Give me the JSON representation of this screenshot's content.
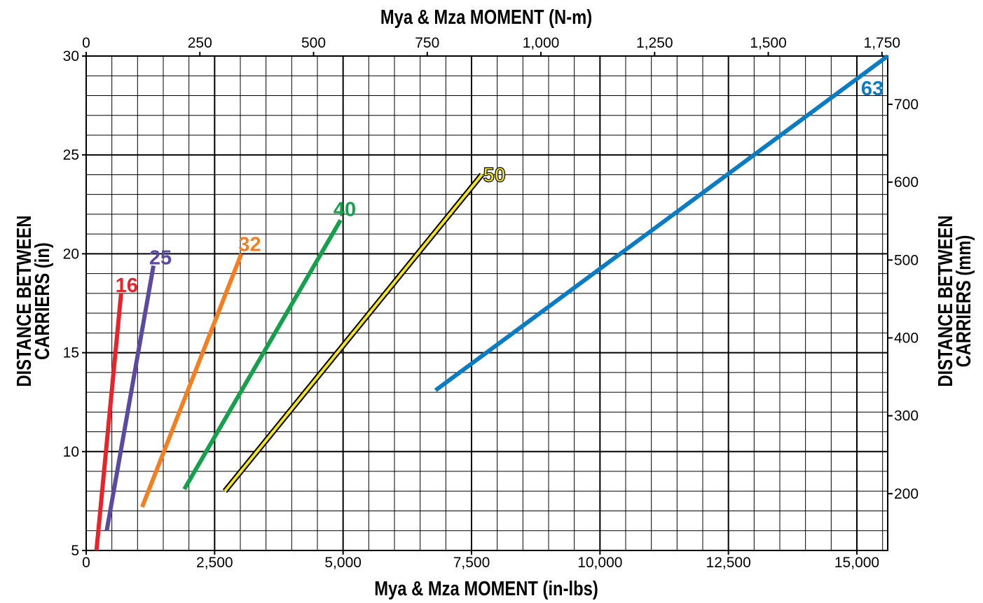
{
  "chart_data": {
    "type": "line",
    "title": "Mya & Mza MOMENT (N-m)",
    "xlabel": "Mya & Mza MOMENT (in-lbs)",
    "ylabel": "DISTANCE BETWEEN CARRIERS (in)",
    "x2label": "Mya & Mza MOMENT (N-m)",
    "y2label": "DISTANCE BETWEEN CARRIERS (mm)",
    "xlim": [
      0,
      15600
    ],
    "ylim": [
      5,
      30
    ],
    "x2lim": [
      0,
      1762.6
    ],
    "y2lim": [
      127,
      762
    ],
    "grid": true,
    "x_ticks": [
      0,
      2500,
      5000,
      7500,
      10000,
      12500,
      15000
    ],
    "x_tick_labels": [
      "0",
      "2,500",
      "5,000",
      "7,500",
      "10,000",
      "12,500",
      "15,000"
    ],
    "y_ticks": [
      5,
      10,
      15,
      20,
      25,
      30
    ],
    "y_tick_labels": [
      "5",
      "10",
      "15",
      "20",
      "25",
      "30"
    ],
    "x2_ticks": [
      0,
      250,
      500,
      750,
      1000,
      1250,
      1500,
      1750
    ],
    "x2_tick_labels": [
      "0",
      "250",
      "500",
      "750",
      "1,000",
      "1,250",
      "1,500",
      "1,750"
    ],
    "y2_ticks": [
      200,
      300,
      400,
      500,
      600,
      700
    ],
    "y2_tick_labels": [
      "200",
      "300",
      "400",
      "500",
      "600",
      "700"
    ],
    "series": [
      {
        "name": "16",
        "color": "#e8232a",
        "x": [
          200,
          680
        ],
        "y": [
          5,
          18
        ]
      },
      {
        "name": "25",
        "color": "#5b4aa0",
        "x": [
          400,
          1310
        ],
        "y": [
          6,
          19.4
        ]
      },
      {
        "name": "32",
        "color": "#f47f20",
        "x": [
          1090,
          3020
        ],
        "y": [
          7.2,
          20
        ]
      },
      {
        "name": "40",
        "color": "#15a04b",
        "x": [
          1910,
          4950
        ],
        "y": [
          8.1,
          21.7
        ]
      },
      {
        "name": "50",
        "color": "#f4e41c",
        "outline": "#000000",
        "x": [
          2700,
          7700
        ],
        "y": [
          8,
          24
        ]
      },
      {
        "name": "63",
        "color": "#0a7cc4",
        "x": [
          6800,
          15600
        ],
        "y": [
          13.1,
          30
        ]
      }
    ]
  }
}
